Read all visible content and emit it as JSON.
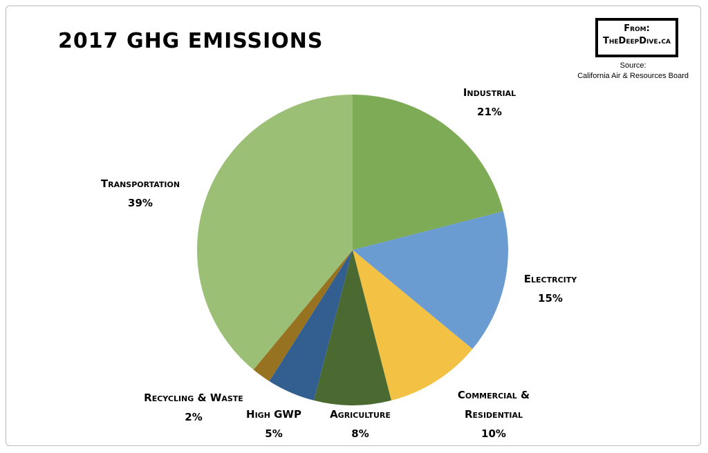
{
  "chart_data": {
    "type": "pie",
    "title": "2017 GHG EMISSIONS",
    "credit": [
      "From:",
      "TheDeepDive.ca"
    ],
    "source": [
      "Source:",
      "California Air & Resources Board"
    ],
    "categories": [
      "Industrial",
      "Electrcity",
      "Commercial & Residential",
      "Agriculture",
      "High GWP",
      "Recycling & Waste",
      "Transportation"
    ],
    "values": [
      21,
      15,
      10,
      8,
      5,
      2,
      39
    ],
    "value_labels": [
      "21%",
      "15%",
      "10%",
      "8%",
      "5%",
      "2%",
      "39%"
    ],
    "colors": [
      "#7eab55",
      "#6a9bd1",
      "#f3c143",
      "#4b6a32",
      "#335f90",
      "#977221",
      "#9bbf74"
    ]
  }
}
